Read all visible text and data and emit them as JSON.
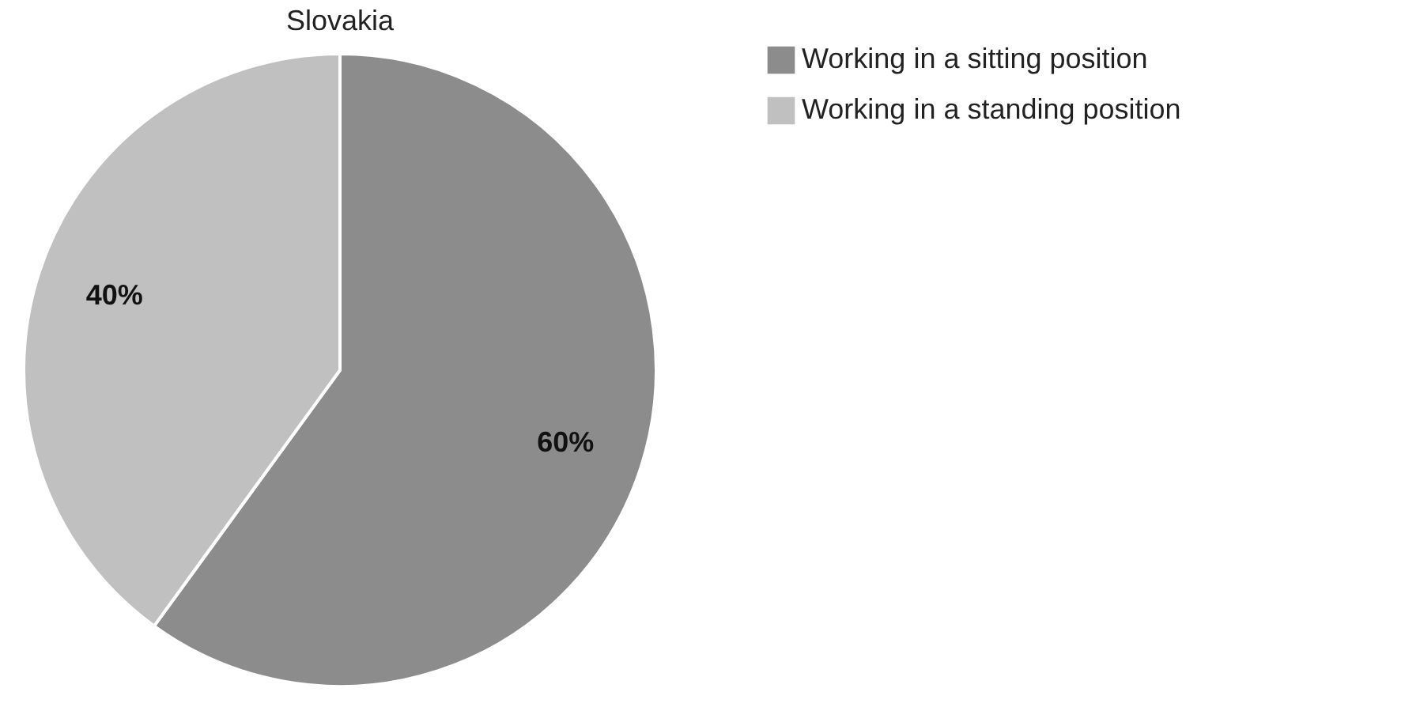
{
  "chart_data": {
    "type": "pie",
    "title": "Slovakia",
    "categories": [
      "Working in a sitting position",
      "Working in a standing position"
    ],
    "values": [
      60,
      40
    ],
    "colors": [
      "#8c8c8c",
      "#c0c0c0"
    ],
    "value_labels": [
      "60%",
      "40%"
    ],
    "legend": "right"
  }
}
